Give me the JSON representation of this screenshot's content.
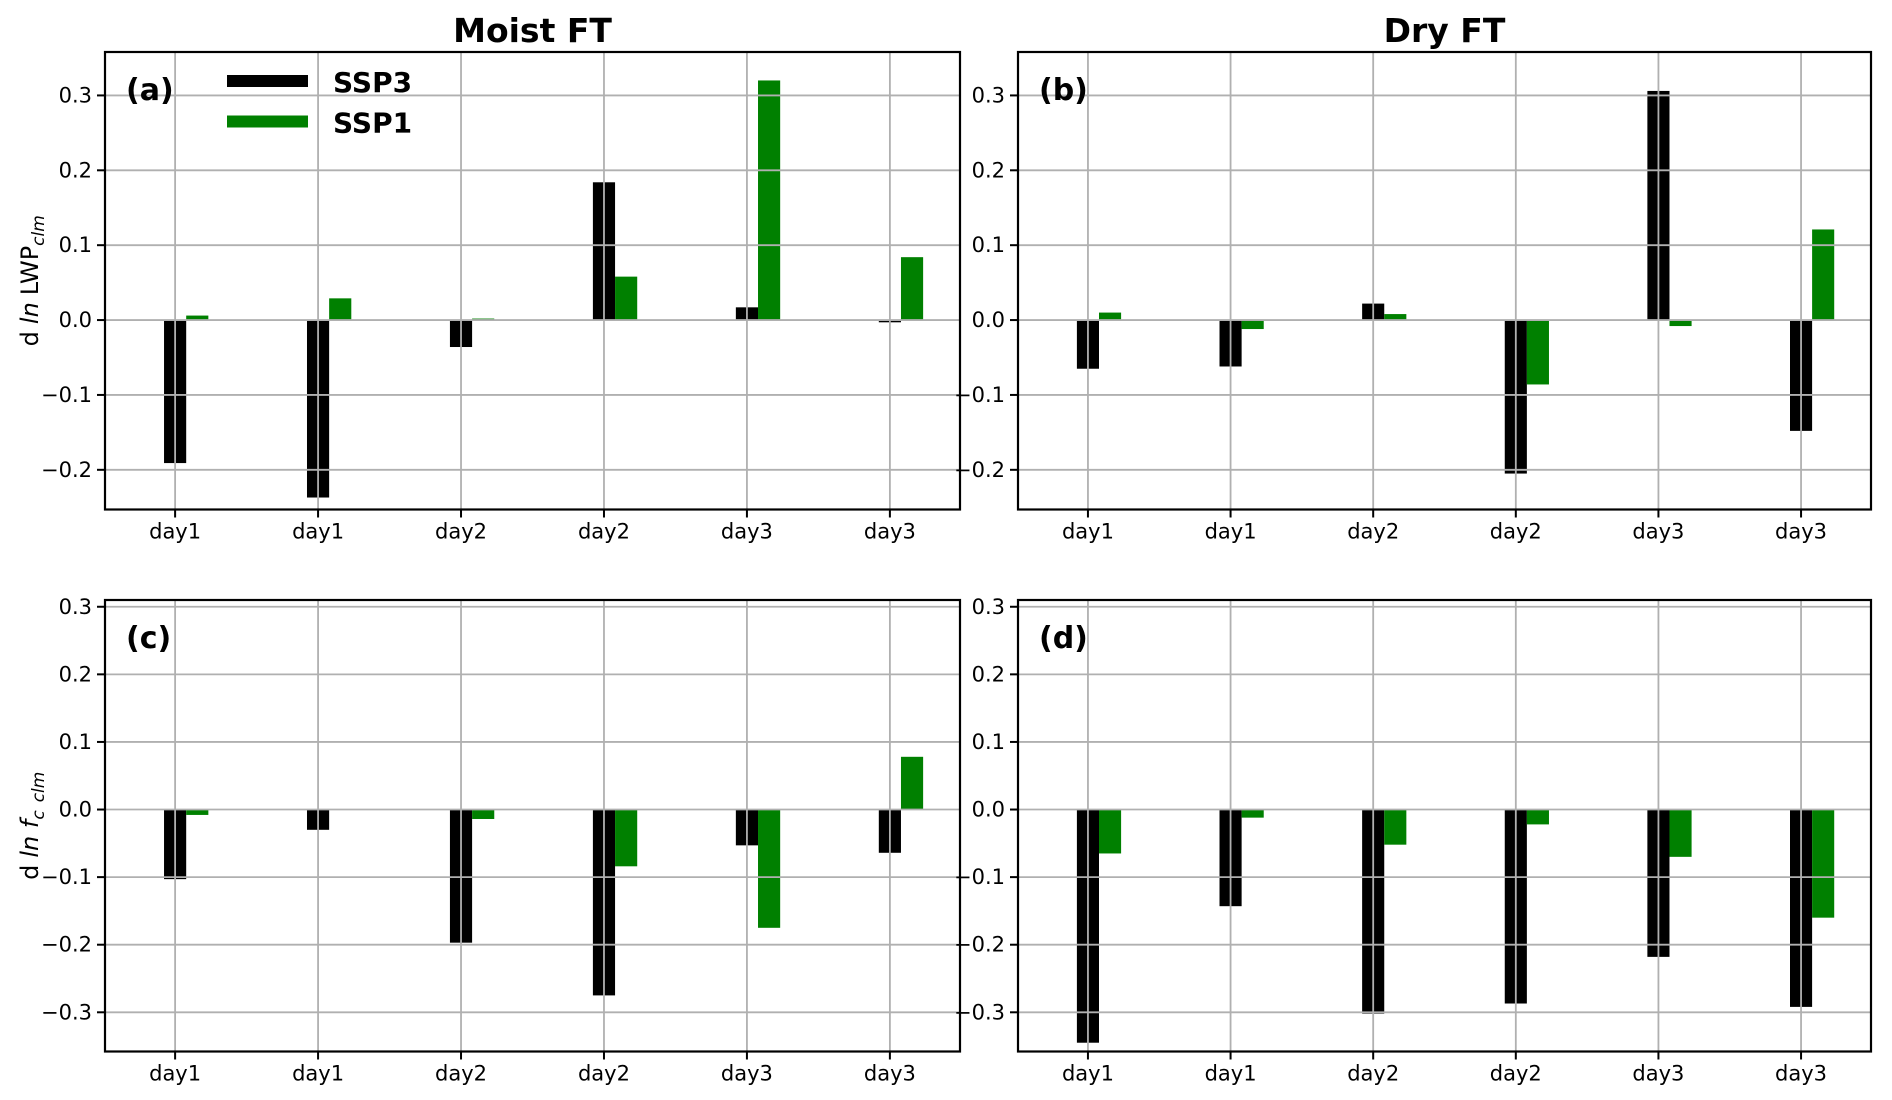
{
  "figure": {
    "background": "#ffffff",
    "grid_color": "#b0b0b0",
    "axis_color": "#000000",
    "bar_black": "#000000",
    "bar_green": "#008000"
  },
  "legend": {
    "entries": [
      {
        "label": "SSP3",
        "color": "#000000"
      },
      {
        "label": "SSP1",
        "color": "#008000"
      }
    ]
  },
  "chart_data": [
    {
      "id": "a",
      "type": "bar",
      "panel_label": "(a)",
      "title": "Moist FT",
      "categories": [
        "day1",
        "day1",
        "day2",
        "day2",
        "day3",
        "day3"
      ],
      "series": [
        {
          "name": "SSP3",
          "color": "#000000",
          "values": [
            -0.191,
            -0.237,
            -0.036,
            0.184,
            0.017,
            -0.003
          ]
        },
        {
          "name": "SSP1",
          "color": "#008000",
          "values": [
            0.006,
            0.029,
            0.002,
            0.058,
            0.32,
            0.084
          ]
        }
      ],
      "ylabel_segments": [
        {
          "t": "d",
          "italic": false,
          "sub": false
        },
        {
          "t": "ln",
          "italic": true,
          "sub": false,
          "dx": 7
        },
        {
          "t": "LWP",
          "italic": false,
          "sub": false,
          "dx": 7
        },
        {
          "t": "clm",
          "italic": true,
          "sub": true
        }
      ],
      "ylim": [
        -0.253,
        0.358
      ],
      "yticks": [
        -0.2,
        -0.1,
        0.0,
        0.1,
        0.2,
        0.3
      ],
      "grid": true,
      "legend_position": "upper-left",
      "show_legend": true
    },
    {
      "id": "b",
      "type": "bar",
      "panel_label": "(b)",
      "title": "Dry FT",
      "categories": [
        "day1",
        "day1",
        "day2",
        "day2",
        "day3",
        "day3"
      ],
      "series": [
        {
          "name": "SSP3",
          "color": "#000000",
          "values": [
            -0.065,
            -0.062,
            0.022,
            -0.205,
            0.306,
            -0.148
          ]
        },
        {
          "name": "SSP1",
          "color": "#008000",
          "values": [
            0.01,
            -0.012,
            0.008,
            -0.086,
            -0.008,
            0.121
          ]
        }
      ],
      "ylabel_segments": [],
      "ylim": [
        -0.253,
        0.358
      ],
      "yticks": [
        -0.2,
        -0.1,
        0.0,
        0.1,
        0.2,
        0.3
      ],
      "grid": true,
      "show_legend": false
    },
    {
      "id": "c",
      "type": "bar",
      "panel_label": "(c)",
      "title": "",
      "categories": [
        "day1",
        "day1",
        "day2",
        "day2",
        "day3",
        "day3"
      ],
      "series": [
        {
          "name": "SSP3",
          "color": "#000000",
          "values": [
            -0.103,
            -0.03,
            -0.197,
            -0.275,
            -0.053,
            -0.064
          ]
        },
        {
          "name": "SSP1",
          "color": "#008000",
          "values": [
            -0.008,
            0.0,
            -0.014,
            -0.084,
            -0.175,
            0.078
          ]
        }
      ],
      "ylabel_segments": [
        {
          "t": "d",
          "italic": false,
          "sub": false
        },
        {
          "t": "ln f",
          "italic": true,
          "sub": false,
          "dx": 7
        },
        {
          "t": "c",
          "italic": true,
          "sub": true
        },
        {
          "t": "clm",
          "italic": true,
          "sub": true,
          "dx": 8
        }
      ],
      "ylim": [
        -0.358,
        0.31
      ],
      "yticks": [
        -0.3,
        -0.2,
        -0.1,
        0.0,
        0.1,
        0.2,
        0.3
      ],
      "grid": true,
      "show_legend": false
    },
    {
      "id": "d",
      "type": "bar",
      "panel_label": "(d)",
      "title": "",
      "categories": [
        "day1",
        "day1",
        "day2",
        "day2",
        "day3",
        "day3"
      ],
      "series": [
        {
          "name": "SSP3",
          "color": "#000000",
          "values": [
            -0.345,
            -0.143,
            -0.302,
            -0.287,
            -0.218,
            -0.292
          ]
        },
        {
          "name": "SSP1",
          "color": "#008000",
          "values": [
            -0.065,
            -0.012,
            -0.052,
            -0.022,
            -0.07,
            -0.16
          ]
        }
      ],
      "ylabel_segments": [],
      "ylim": [
        -0.358,
        0.31
      ],
      "yticks": [
        -0.3,
        -0.2,
        -0.1,
        0.0,
        0.1,
        0.2,
        0.3
      ],
      "grid": true,
      "show_legend": false
    }
  ]
}
